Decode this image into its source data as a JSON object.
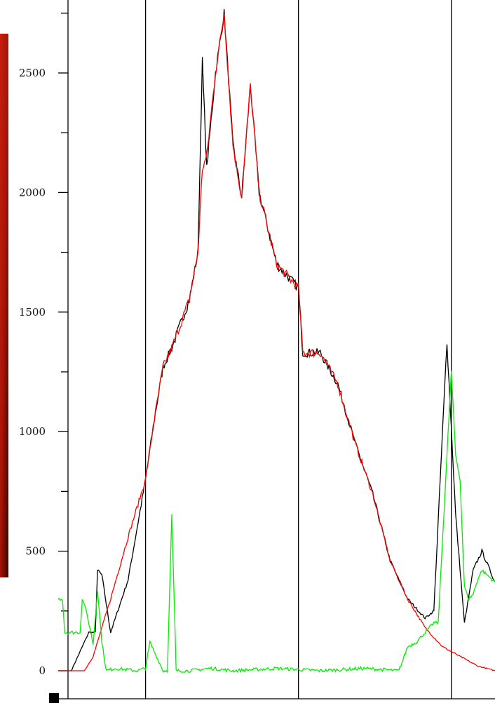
{
  "chart_data": {
    "type": "line",
    "title": "",
    "xlabel": "",
    "ylabel": "",
    "ylim": [
      -70,
      2780
    ],
    "xlim": [
      0,
      1
    ],
    "grid": false,
    "legend": "none",
    "y_ticks": [
      {
        "value": 0,
        "label": "0"
      },
      {
        "value": 500,
        "label": "500"
      },
      {
        "value": 1000,
        "label": "1000"
      },
      {
        "value": 1500,
        "label": "1500"
      },
      {
        "value": 2000,
        "label": "2000"
      },
      {
        "value": 2500,
        "label": "2500"
      }
    ],
    "y_minor_ticks": [
      250,
      750,
      1250,
      1750,
      2250,
      2750
    ],
    "x_markers": [
      0.2,
      0.55,
      0.9
    ],
    "series": [
      {
        "color": "#000000",
        "x": [
          0,
          0.03,
          0.07,
          0.085,
          0.09,
          0.1,
          0.12,
          0.16,
          0.2,
          0.22,
          0.24,
          0.26,
          0.3,
          0.32,
          0.33,
          0.34,
          0.36,
          0.38,
          0.4,
          0.42,
          0.44,
          0.46,
          0.5,
          0.55,
          0.56,
          0.6,
          0.64,
          0.68,
          0.72,
          0.76,
          0.8,
          0.84,
          0.86,
          0.89,
          0.91,
          0.93,
          0.95,
          0.97,
          1.0
        ],
        "y": [
          0,
          0,
          160,
          160,
          420,
          400,
          160,
          380,
          800,
          1050,
          1270,
          1350,
          1550,
          1750,
          2550,
          2100,
          2500,
          2750,
          2200,
          1980,
          2450,
          2000,
          1700,
          1600,
          1330,
          1330,
          1200,
          950,
          740,
          460,
          300,
          220,
          250,
          1380,
          650,
          200,
          420,
          500,
          370
        ]
      },
      {
        "color": "#ff0000",
        "x": [
          0,
          0.06,
          0.08,
          0.12,
          0.16,
          0.2,
          0.22,
          0.24,
          0.26,
          0.3,
          0.32,
          0.33,
          0.34,
          0.36,
          0.38,
          0.4,
          0.42,
          0.44,
          0.46,
          0.5,
          0.55,
          0.56,
          0.6,
          0.64,
          0.68,
          0.72,
          0.76,
          0.8,
          0.84,
          0.88,
          0.92,
          0.96,
          1.0
        ],
        "y": [
          0,
          0,
          60,
          300,
          560,
          800,
          1050,
          1270,
          1350,
          1550,
          1750,
          2100,
          2150,
          2500,
          2750,
          2200,
          1980,
          2450,
          2000,
          1700,
          1600,
          1330,
          1330,
          1200,
          950,
          740,
          460,
          300,
          180,
          100,
          60,
          20,
          0
        ]
      },
      {
        "color": "#00ee00",
        "x": [
          0,
          0.01,
          0.015,
          0.05,
          0.055,
          0.06,
          0.075,
          0.08,
          0.09,
          0.1,
          0.11,
          0.13,
          0.18,
          0.2,
          0.21,
          0.24,
          0.25,
          0.26,
          0.27,
          0.3,
          0.35,
          0.4,
          0.5,
          0.6,
          0.7,
          0.78,
          0.8,
          0.82,
          0.84,
          0.86,
          0.87,
          0.9,
          0.91,
          0.92,
          0.93,
          0.94,
          0.95,
          0.96,
          0.97,
          1.0
        ],
        "y": [
          300,
          300,
          160,
          160,
          300,
          280,
          160,
          110,
          340,
          120,
          0,
          10,
          0,
          10,
          120,
          0,
          0,
          650,
          0,
          0,
          10,
          0,
          10,
          0,
          10,
          0,
          100,
          120,
          160,
          200,
          200,
          1250,
          900,
          800,
          350,
          300,
          320,
          380,
          420,
          370
        ]
      }
    ]
  }
}
